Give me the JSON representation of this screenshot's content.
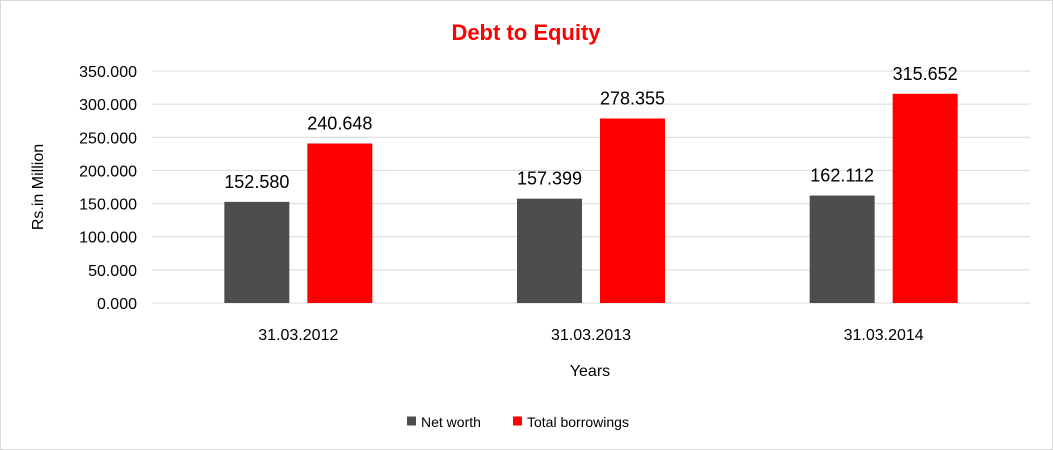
{
  "chart_data": {
    "type": "bar",
    "title": "Debt to Equity",
    "xlabel": "Years",
    "ylabel": "Rs.in Million",
    "categories": [
      "31.03.2012",
      "31.03.2013",
      "31.03.2014"
    ],
    "series": [
      {
        "name": "Net worth",
        "color": "#4d4d4d",
        "values": [
          152.58,
          157.399,
          162.112
        ],
        "labels": [
          "152.580",
          "157.399",
          "162.112"
        ]
      },
      {
        "name": "Total borrowings",
        "color": "#ff0000",
        "values": [
          240.648,
          278.355,
          315.652
        ],
        "labels": [
          "240.648",
          "278.355",
          "315.652"
        ]
      }
    ],
    "ylim": [
      0,
      350
    ],
    "yticks": [
      0,
      50,
      100,
      150,
      200,
      250,
      300,
      350
    ],
    "ytick_labels": [
      "0.000",
      "50.000",
      "100.000",
      "150.000",
      "200.000",
      "250.000",
      "300.000",
      "350.000"
    ],
    "grid": true,
    "legend_position": "bottom"
  }
}
